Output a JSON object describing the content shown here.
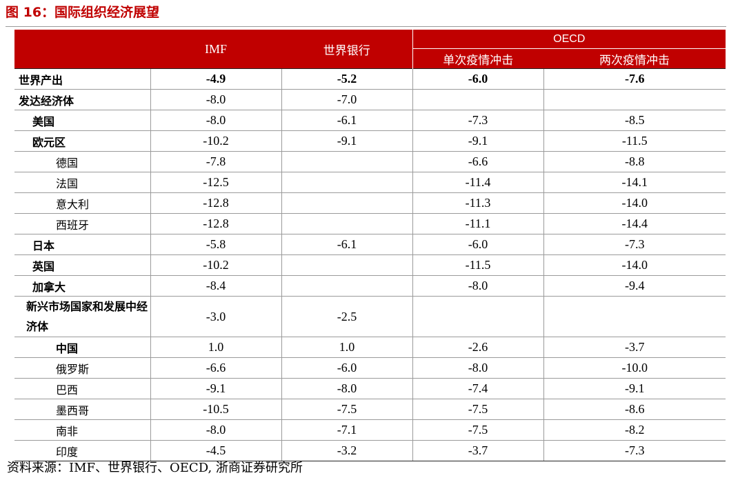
{
  "title": "图 16：国际组织经济展望",
  "header": {
    "imf": "IMF",
    "worldbank": "世界银行",
    "oecd": "OECD",
    "oecd_single": "单次疫情冲击",
    "oecd_double": "两次疫情冲击"
  },
  "rows": [
    {
      "label": "世界产出",
      "imf": "-4.9",
      "wb": "-5.2",
      "single": "-6.0",
      "double": "-7.6"
    },
    {
      "label": "发达经济体",
      "imf": "-8.0",
      "wb": "-7.0",
      "single": "",
      "double": ""
    },
    {
      "label": "美国",
      "imf": "-8.0",
      "wb": "-6.1",
      "single": "-7.3",
      "double": "-8.5"
    },
    {
      "label": "欧元区",
      "imf": "-10.2",
      "wb": "-9.1",
      "single": "-9.1",
      "double": "-11.5"
    },
    {
      "label": "德国",
      "imf": "-7.8",
      "wb": "",
      "single": "-6.6",
      "double": "-8.8"
    },
    {
      "label": "法国",
      "imf": "-12.5",
      "wb": "",
      "single": "-11.4",
      "double": "-14.1"
    },
    {
      "label": "意大利",
      "imf": "-12.8",
      "wb": "",
      "single": "-11.3",
      "double": "-14.0"
    },
    {
      "label": "西班牙",
      "imf": "-12.8",
      "wb": "",
      "single": "-11.1",
      "double": "-14.4"
    },
    {
      "label": "日本",
      "imf": "-5.8",
      "wb": "-6.1",
      "single": "-6.0",
      "double": "-7.3"
    },
    {
      "label": "英国",
      "imf": "-10.2",
      "wb": "",
      "single": "-11.5",
      "double": "-14.0"
    },
    {
      "label": "加拿大",
      "imf": "-8.4",
      "wb": "",
      "single": "-8.0",
      "double": "-9.4"
    },
    {
      "label": "新兴市场国家和发展中经济体",
      "imf": "-3.0",
      "wb": "-2.5",
      "single": "",
      "double": ""
    },
    {
      "label": "中国",
      "imf": "1.0",
      "wb": "1.0",
      "single": "-2.6",
      "double": "-3.7"
    },
    {
      "label": "俄罗斯",
      "imf": "-6.6",
      "wb": "-6.0",
      "single": "-8.0",
      "double": "-10.0"
    },
    {
      "label": "巴西",
      "imf": "-9.1",
      "wb": "-8.0",
      "single": "-7.4",
      "double": "-9.1"
    },
    {
      "label": "墨西哥",
      "imf": "-10.5",
      "wb": "-7.5",
      "single": "-7.5",
      "double": "-8.6"
    },
    {
      "label": "南非",
      "imf": "-8.0",
      "wb": "-7.1",
      "single": "-7.5",
      "double": "-8.2"
    },
    {
      "label": "印度",
      "imf": "-4.5",
      "wb": "-3.2",
      "single": "-3.7",
      "double": "-7.3"
    }
  ],
  "source": "资料来源：IMF、世界银行、OECD, 浙商证券研究所",
  "colors": {
    "accent": "#c00000",
    "grid": "#9a9a9a"
  }
}
